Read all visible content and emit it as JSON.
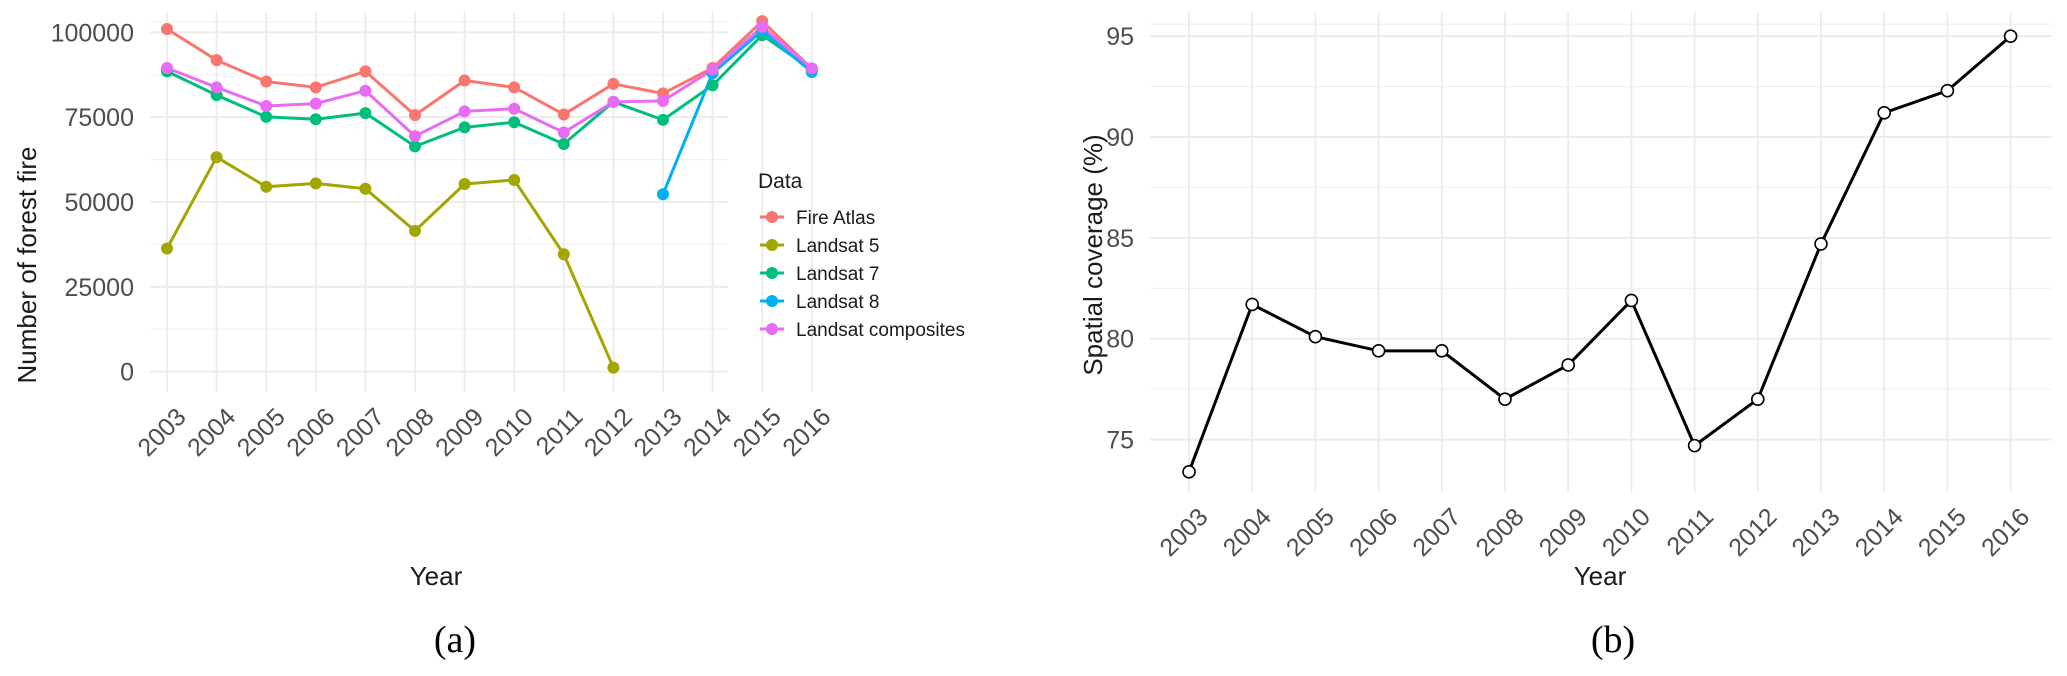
{
  "chart_data": [
    {
      "type": "line",
      "caption": "(a)",
      "xlabel": "Year",
      "ylabel": "Number of forest fire",
      "categories": [
        "2003",
        "2004",
        "2005",
        "2006",
        "2007",
        "2008",
        "2009",
        "2010",
        "2011",
        "2012",
        "2013",
        "2014",
        "2015",
        "2016"
      ],
      "ylim": [
        -6000,
        106000
      ],
      "yticks": [
        0,
        25000,
        50000,
        75000,
        100000
      ],
      "ytick_labels": [
        "0",
        "25000",
        "50000",
        "75000",
        "100000"
      ],
      "grid": true,
      "legend": {
        "title": "Data",
        "placement": "right"
      },
      "series": [
        {
          "name": "Fire Atlas",
          "color": "#F8766D",
          "values": [
            101000,
            91800,
            85500,
            83800,
            88500,
            75600,
            85800,
            83800,
            75800,
            84800,
            82000,
            89500,
            103300,
            89300
          ]
        },
        {
          "name": "Landsat 5",
          "color": "#A3A500",
          "values": [
            36300,
            63200,
            54500,
            55500,
            53900,
            41500,
            55300,
            56500,
            34600,
            1200,
            null,
            null,
            null,
            null
          ]
        },
        {
          "name": "Landsat 7",
          "color": "#00BF7D",
          "values": [
            88500,
            81500,
            75100,
            74400,
            76200,
            66400,
            72000,
            73500,
            67100,
            79500,
            74200,
            84400,
            99200,
            89000
          ]
        },
        {
          "name": "Landsat 8",
          "color": "#00B0F6",
          "values": [
            null,
            null,
            null,
            null,
            null,
            null,
            null,
            null,
            null,
            null,
            52300,
            88000,
            100500,
            88300
          ]
        },
        {
          "name": "Landsat composites",
          "color": "#E76BF3",
          "values": [
            89500,
            83800,
            78300,
            79000,
            82800,
            69400,
            76700,
            77500,
            70500,
            79500,
            79800,
            89000,
            101600,
            89400
          ]
        }
      ]
    },
    {
      "type": "line",
      "caption": "(b)",
      "xlabel": "Year",
      "ylabel": "Spatial coverage (%)",
      "categories": [
        "2003",
        "2004",
        "2005",
        "2006",
        "2007",
        "2008",
        "2009",
        "2010",
        "2011",
        "2012",
        "2013",
        "2014",
        "2015",
        "2016"
      ],
      "ylim": [
        72.4,
        96.2
      ],
      "yticks": [
        75,
        80,
        85,
        90,
        95
      ],
      "ytick_labels": [
        "75",
        "80",
        "85",
        "90",
        "95"
      ],
      "grid": true,
      "series": [
        {
          "color": "#000000",
          "values": [
            73.4,
            81.7,
            80.1,
            79.4,
            79.4,
            77.0,
            78.7,
            81.9,
            74.7,
            77.0,
            84.7,
            91.2,
            92.3,
            95.0
          ]
        }
      ]
    }
  ]
}
